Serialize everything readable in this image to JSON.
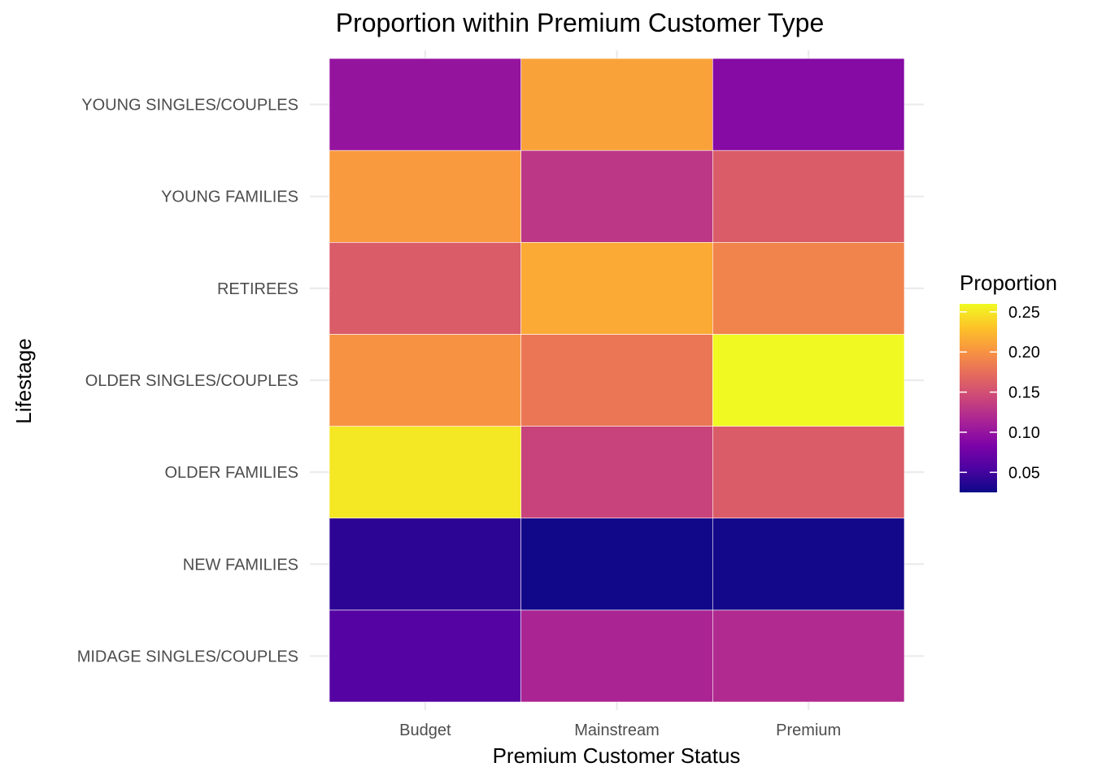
{
  "chart_data": {
    "type": "heatmap",
    "title": "Proportion within Premium Customer Type",
    "xlabel": "Premium Customer Status",
    "ylabel": "Lifestage",
    "x_categories": [
      "Budget",
      "Mainstream",
      "Premium"
    ],
    "y_categories": [
      "MIDAGE SINGLES/COUPLES",
      "NEW FAMILIES",
      "OLDER FAMILIES",
      "OLDER SINGLES/COUPLES",
      "RETIREES",
      "YOUNG FAMILIES",
      "YOUNG SINGLES/COUPLES"
    ],
    "values": [
      [
        0.06,
        0.115,
        0.12
      ],
      [
        0.04,
        0.027,
        0.028
      ],
      [
        0.25,
        0.14,
        0.16
      ],
      [
        0.2,
        0.18,
        0.26
      ],
      [
        0.16,
        0.215,
        0.19
      ],
      [
        0.205,
        0.13,
        0.16
      ],
      [
        0.1,
        0.21,
        0.09
      ]
    ],
    "grid": true,
    "legend": {
      "title": "Proportion",
      "position": "right",
      "min": 0.025,
      "max": 0.26,
      "ticks": [
        0.05,
        0.1,
        0.15,
        0.2,
        0.25
      ],
      "tick_labels": [
        "0.05",
        "0.10",
        "0.15",
        "0.20",
        "0.25"
      ],
      "palette": "plasma"
    }
  }
}
